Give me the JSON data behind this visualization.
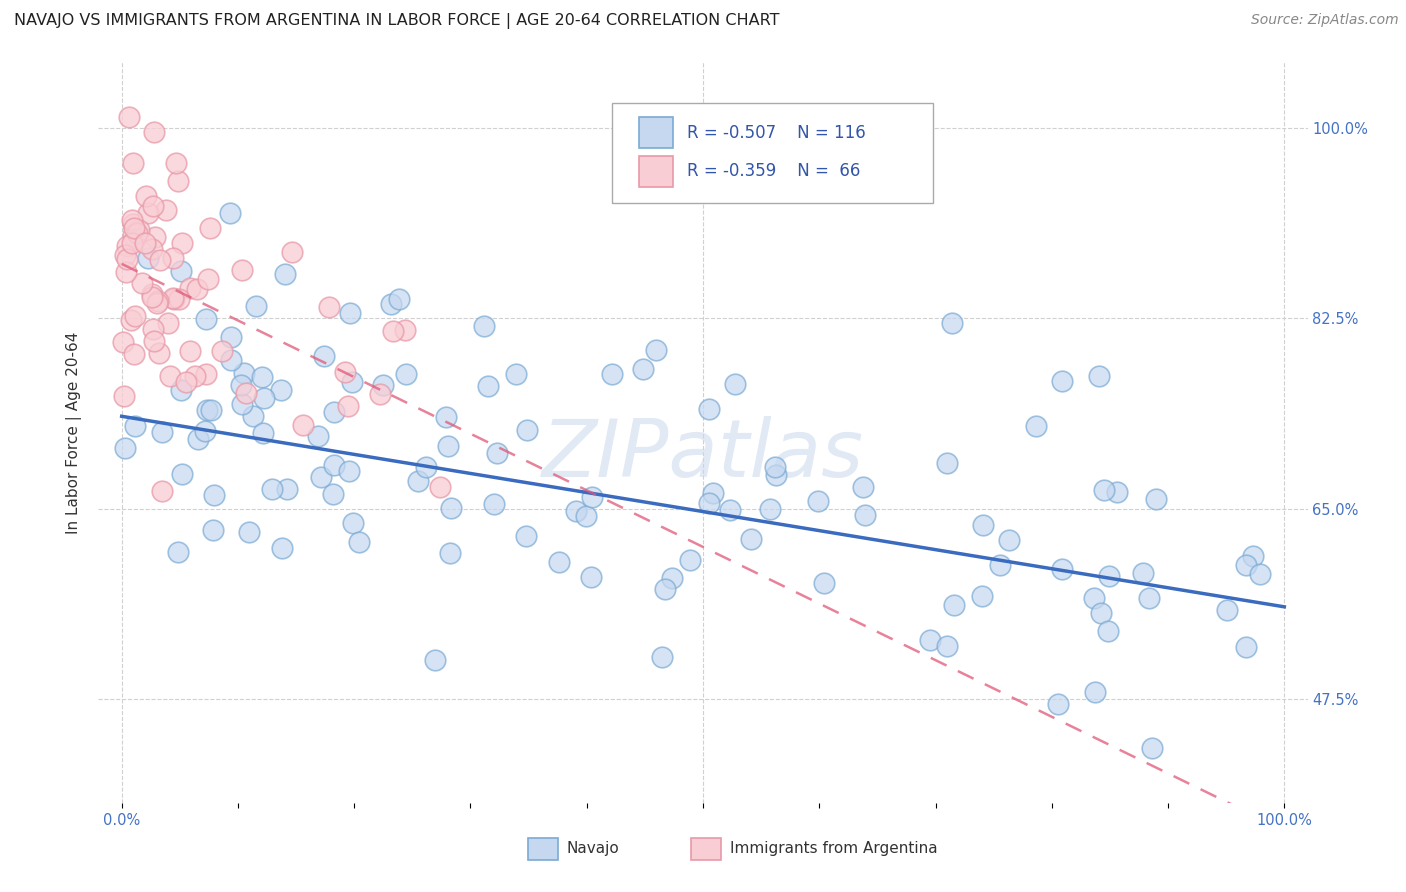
{
  "title": "NAVAJO VS IMMIGRANTS FROM ARGENTINA IN LABOR FORCE | AGE 20-64 CORRELATION CHART",
  "source": "Source: ZipAtlas.com",
  "ylabel": "In Labor Force | Age 20-64",
  "watermark": "ZIPatlas",
  "xlim": [
    -0.02,
    1.02
  ],
  "ylim": [
    0.38,
    1.06
  ],
  "yticks": [
    0.475,
    0.65,
    0.825,
    1.0
  ],
  "ytick_labels": [
    "47.5%",
    "65.0%",
    "82.5%",
    "100.0%"
  ],
  "xtick_positions": [
    0.0,
    0.1,
    0.2,
    0.3,
    0.4,
    0.5,
    0.6,
    0.7,
    0.8,
    0.9,
    1.0
  ],
  "xtick_labels": [
    "0.0%",
    "",
    "",
    "",
    "",
    "",
    "",
    "",
    "",
    "",
    "100.0%"
  ],
  "legend_text1": "R = -0.507    N = 116",
  "legend_text2": "R = -0.359    N =  66",
  "navajo_fill": "#c5d8f0",
  "navajo_edge": "#7aaad4",
  "argentina_fill": "#f9cdd4",
  "argentina_edge": "#e899a8",
  "navajo_line_color": "#3b6bbf",
  "argentina_line_color": "#e05878",
  "background_color": "#ffffff",
  "grid_color": "#d0d0d0",
  "title_fontsize": 11.5,
  "ylabel_fontsize": 11,
  "tick_fontsize": 10.5,
  "legend_fontsize": 12,
  "source_fontsize": 10,
  "navajo_intercept": 0.735,
  "navajo_slope": -0.175,
  "argentina_intercept": 0.875,
  "argentina_slope": -0.52
}
